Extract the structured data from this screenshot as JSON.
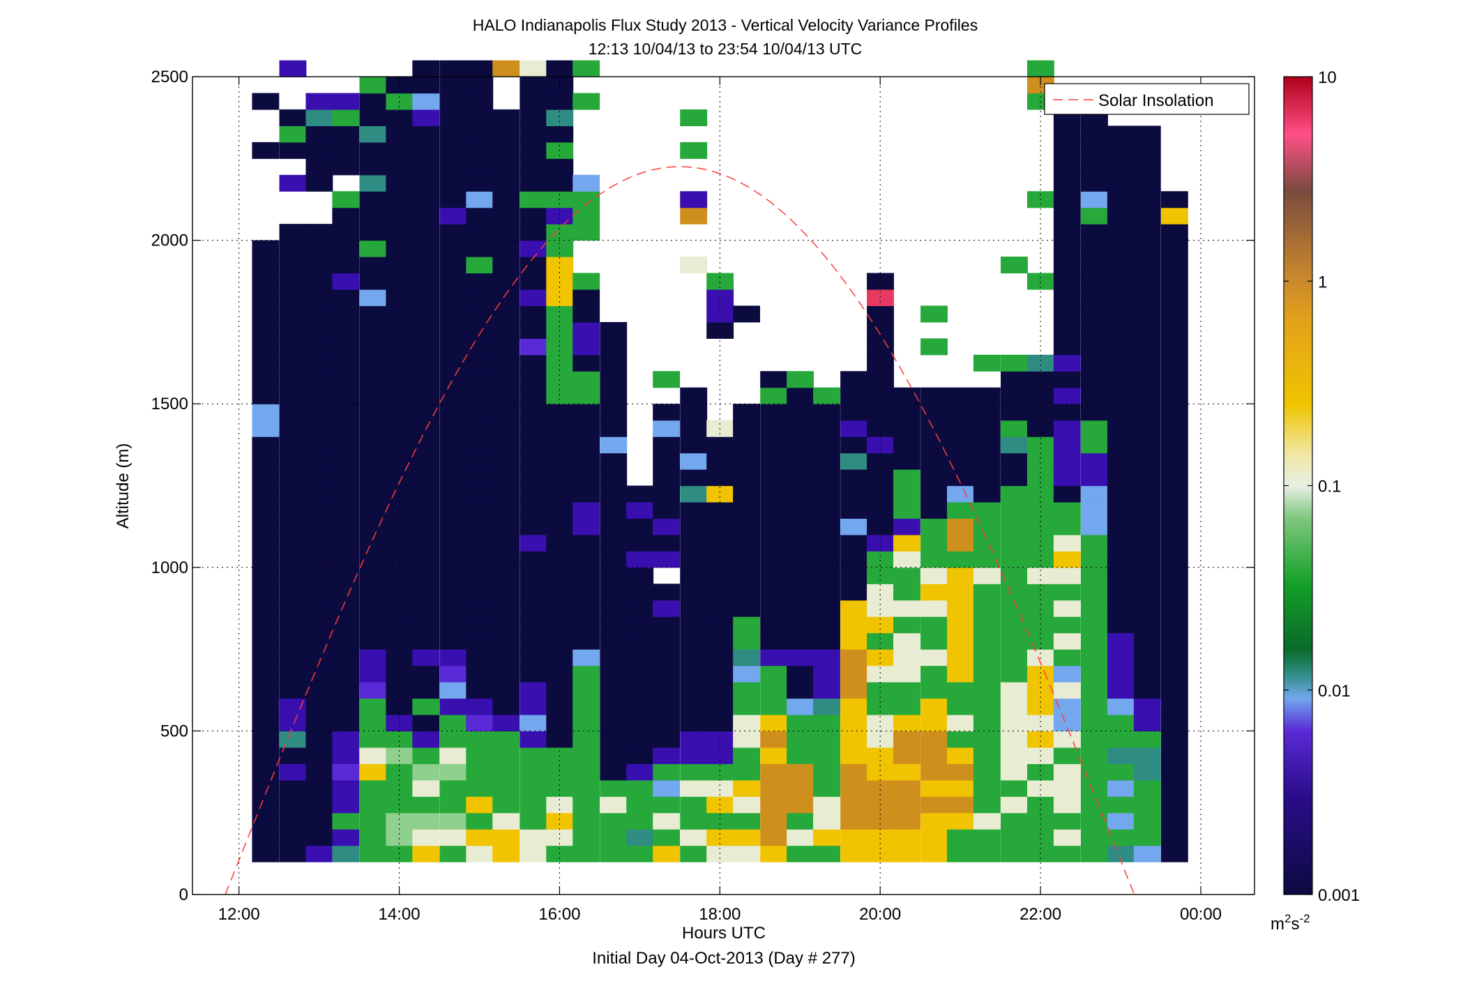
{
  "chart_data": {
    "type": "heatmap",
    "title_line1": "HALO Indianapolis Flux Study 2013 - Vertical Velocity Variance Profiles",
    "title_line2": "12:13 10/04/13 to 23:54 10/04/13  UTC",
    "xlabel": "Hours UTC",
    "xlabel2": "Initial Day 04-Oct-2013 (Day # 277)",
    "ylabel": "Altitude (m)",
    "xlim": [
      11.42,
      24.67
    ],
    "ylim": [
      0,
      2500
    ],
    "x_ticks": [
      12,
      14,
      16,
      18,
      20,
      22,
      24
    ],
    "x_tick_labels": [
      "12:00",
      "14:00",
      "16:00",
      "18:00",
      "20:00",
      "22:00",
      "00:00"
    ],
    "y_ticks": [
      0,
      500,
      1000,
      1500,
      2000,
      2500
    ],
    "y_tick_labels": [
      "0",
      "500",
      "1000",
      "1500",
      "2000",
      "2500"
    ],
    "grid": true,
    "legend": {
      "placement": "top-right",
      "entries": [
        "Solar Insolation"
      ]
    },
    "colorbar": {
      "scale": "log",
      "range": [
        0.001,
        10
      ],
      "tick_values": [
        0.001,
        0.01,
        0.1,
        1,
        10
      ],
      "tick_labels": [
        "0.001",
        "0.01",
        "0.1",
        "1",
        "10"
      ],
      "unit_base": "m",
      "unit_sup1": "2",
      "unit_mid": "s",
      "unit_sup2": "-2"
    },
    "bin_hours": 0.333,
    "bin_altitude_m": 50,
    "columns": [
      {
        "time": 12.33,
        "bottom": 100,
        "profile": "L,L,L,L,L,L,L,L,L,L,L,L,L,L,L,L,L,L,L,L,L,L,L,L,L,L,B,B,L,L,L,L,L,L,L,L,L,L,_,_,_,_,_,L,_,_,L,_,_"
      },
      {
        "time": 12.67,
        "bottom": 100,
        "profile": "L,L,L,L,L,V,L,T,V,V,L,L,L,L,L,L,L,L,L,L,L,L,L,L,L,L,L,L,L,L,L,L,L,L,L,L,L,L,L,_,_,V,_,L,G,L,_,_,V"
      },
      {
        "time": 13.0,
        "bottom": 100,
        "profile": "V,L,L,L,L,L,L,L,L,L,L,L,L,L,L,L,L,L,L,L,L,L,L,L,L,L,L,L,L,L,L,L,L,L,L,L,L,L,L,_,_,L,L,L,L,T,V,_,_"
      },
      {
        "time": 13.33,
        "bottom": 100,
        "profile": "T,V,G,V,V,P,V,V,L,L,L,L,L,L,L,L,L,L,L,L,L,L,L,L,L,L,L,L,L,L,L,L,L,L,L,V,L,L,L,L,G,_,L,L,L,G,V,_,_"
      },
      {
        "time": 13.67,
        "bottom": 100,
        "profile": "G,G,G,G,G,Y,W,G,G,G,P,V,V,L,L,L,L,L,L,L,L,L,L,L,L,L,L,L,L,L,L,L,L,L,B,L,L,G,L,L,L,T,L,L,T,L,L,G,_"
      },
      {
        "time": 14.0,
        "bottom": 100,
        "profile": "G,M,M,G,G,G,M,G,V,L,L,L,L,L,L,L,L,L,L,L,L,L,L,L,L,L,L,L,L,L,L,L,L,L,L,L,L,L,L,L,L,L,L,L,L,L,G,L,_"
      },
      {
        "time": 14.33,
        "bottom": 100,
        "profile": "Y,W,M,G,W,M,G,V,L,G,L,L,V,L,L,L,L,L,L,L,L,L,L,L,L,L,L,L,L,L,L,L,L,L,L,L,L,L,L,L,L,L,L,L,L,V,B,L,L"
      },
      {
        "time": 14.67,
        "bottom": 100,
        "profile": "G,W,M,G,G,M,W,G,G,V,B,P,V,L,L,L,L,L,L,L,L,L,L,L,L,L,L,L,L,L,L,L,L,L,L,L,L,L,L,V,L,L,L,L,L,L,L,L,L"
      },
      {
        "time": 15.0,
        "bottom": 100,
        "profile": "W,Y,G,Y,G,G,G,G,P,V,L,L,L,L,L,L,L,L,L,L,L,L,L,L,L,L,L,L,L,L,L,L,L,L,L,L,G,L,L,L,B,L,L,L,L,L,L,L,L"
      },
      {
        "time": 15.33,
        "bottom": 100,
        "profile": "Y,Y,W,G,G,G,G,G,V,L,L,L,L,L,L,L,L,L,L,L,L,L,L,L,L,L,L,L,L,L,L,L,L,L,L,L,L,L,L,L,L,L,L,L,L,L,_,_,O"
      },
      {
        "time": 15.67,
        "bottom": 100,
        "profile": "W,W,G,G,G,G,G,V,B,V,V,L,L,L,L,L,L,L,L,V,L,L,L,L,L,L,L,L,L,L,L,P,L,L,V,L,L,V,L,L,G,L,L,L,L,L,L,L,W"
      },
      {
        "time": 16.0,
        "bottom": 100,
        "profile": "G,W,Y,W,G,G,G,L,L,L,L,L,L,L,L,L,L,L,L,L,L,L,L,L,L,L,L,L,G,G,G,G,G,G,Y,Y,Y,G,G,V,G,L,L,G,L,T,L,L,L"
      },
      {
        "time": 16.33,
        "bottom": 100,
        "profile": "G,G,G,G,G,G,G,G,G,G,G,G,B,L,L,L,L,L,L,L,V,V,L,L,L,L,L,L,G,G,L,V,V,L,L,G,_,_,G,G,G,B,_,_,_,_,G,_,G"
      },
      {
        "time": 16.67,
        "bottom": 100,
        "profile": "G,G,G,W,G,L,L,L,L,L,L,L,L,L,L,L,L,L,L,L,L,L,L,L,L,B,L,L,L,L,L,L,L,_,_,_,_,_,_,_,_,_,_,_,_,_,_,_,_"
      },
      {
        "time": 17.0,
        "bottom": 100,
        "profile": "G,T,G,G,G,V,L,L,L,L,L,L,L,L,L,L,L,L,V,L,L,V,L,_,_,_,_,_,_,_,_,_,_,_,_,_,_,_,_,_,_,_,_,_,_,_,_,_,_"
      },
      {
        "time": 17.33,
        "bottom": 100,
        "profile": "Y,G,W,G,B,G,V,L,L,L,L,L,L,L,L,V,L,_,V,L,V,L,L,L,L,L,B,L,_,G,_,_,_,_,_,_,_,_,_,_,_,_,_,_,_,_,_,_,_"
      },
      {
        "time": 17.67,
        "bottom": 100,
        "profile": "G,W,G,G,W,G,V,V,L,L,L,L,L,L,L,L,L,L,L,L,L,L,T,L,B,L,L,L,L,_,_,_,_,_,_,_,W,_,_,O,V,_,_,G,_,G,_,_,_"
      },
      {
        "time": 18.0,
        "bottom": 100,
        "profile": "W,Y,G,Y,W,G,V,V,L,L,L,L,L,L,L,L,L,L,L,L,L,L,Y,L,L,L,W,_,_,_,_,_,L,V,V,G,_,_,_,_,_,_,_,_,_,_,_,_,_"
      },
      {
        "time": 18.33,
        "bottom": 100,
        "profile": "W,Y,G,W,Y,G,G,W,W,G,G,B,T,G,G,L,L,L,L,L,L,L,L,L,L,L,L,L,_,_,_,_,_,L,_,_,_,_,_,_,_,_,_,_,_,_,_,_,_"
      },
      {
        "time": 18.67,
        "bottom": 100,
        "profile": "Y,O,O,O,O,O,Y,O,Y,G,G,G,V,L,L,L,L,L,L,L,L,L,L,L,L,L,L,L,G,L,_,_,_,_,_,_,_,_,_,_,_,_,_,_,_,_,_,_,_"
      },
      {
        "time": 19.0,
        "bottom": 100,
        "profile": "G,W,G,O,O,O,G,G,G,B,L,L,V,L,L,L,L,L,L,L,L,L,L,L,L,L,L,L,L,G,_,_,_,_,_,_,_,_,_,_,_,_,_,_,_,_,_,_,_"
      },
      {
        "time": 19.33,
        "bottom": 100,
        "profile": "G,Y,W,W,G,G,G,G,G,T,V,V,V,L,L,L,L,L,L,L,L,L,L,L,L,L,L,L,G,_,_,_,_,_,_,_,_,_,_,_,_,_,_,_,_,_,_,_,_"
      },
      {
        "time": 19.67,
        "bottom": 100,
        "profile": "Y,Y,O,O,O,O,Y,Y,Y,Y,O,O,O,Y,Y,Y,L,L,L,L,B,L,L,L,T,L,V,L,L,L,_,_,_,_,_,_,_,_,_,_,_,_,_,_,_,_,_,_,_"
      },
      {
        "time": 20.0,
        "bottom": 100,
        "profile": "Y,Y,O,O,O,Y,Y,W,W,G,G,W,Y,G,Y,W,W,G,G,V,L,L,L,L,L,V,L,L,L,L,L,L,L,L,R,L,_,_,_,_,_,_,_,_,_,_,_,_,_"
      },
      {
        "time": 20.33,
        "bottom": 100,
        "profile": "Y,Y,O,O,O,Y,O,O,Y,G,G,W,W,W,G,W,G,G,W,Y,V,G,G,G,L,L,L,L,L,_,_,_,_,_,_,_,_,_,_,_,_,_,_,_,_,_,_,_,_"
      },
      {
        "time": 20.67,
        "bottom": 100,
        "profile": "Y,Y,Y,O,Y,O,O,O,Y,Y,G,G,W,G,G,W,Y,W,G,G,G,L,L,L,L,L,L,L,L,_,_,G,_,G,_,_,_,_,_,_,_,_,_,_,_,_,_,_,_"
      },
      {
        "time": 21.0,
        "bottom": 100,
        "profile": "G,G,Y,O,Y,O,Y,G,W,G,G,Y,Y,Y,Y,Y,Y,Y,G,O,O,G,B,L,L,L,L,L,L,_,_,_,_,_,_,_,_,_,_,_,_,_,_,_,_,_,_,_,_"
      },
      {
        "time": 21.33,
        "bottom": 100,
        "profile": "G,G,W,G,G,G,G,G,G,G,G,G,G,G,G,G,G,W,G,G,G,G,L,L,L,L,L,L,L,_,G,_,_,_,_,_,_,_,_,_,_,_,_,_,_,_,_,_,_"
      },
      {
        "time": 21.67,
        "bottom": 100,
        "profile": "G,G,G,W,G,W,W,W,W,W,W,G,G,G,G,G,G,G,G,G,G,G,G,L,L,T,G,L,L,L,G,_,_,_,_,_,G,_,_,_,_,_,_,_,_,_,_,_,_"
      },
      {
        "time": 22.0,
        "bottom": 100,
        "profile": "G,G,G,G,W,G,W,Y,W,Y,Y,Y,W,G,G,G,G,W,G,G,G,G,G,G,G,G,L,L,L,L,T,_,_,_,_,G,_,_,_,_,G,_,_,_,_,_,G,O,G"
      },
      {
        "time": 22.33,
        "bottom": 100,
        "profile": "G,W,G,W,W,W,G,W,B,B,W,B,G,W,G,W,G,W,Y,W,G,G,L,V,V,V,V,L,V,L,V,L,L,L,L,L,L,L,L,L,L,L,L,L,L,L,G,_,_"
      },
      {
        "time": 22.67,
        "bottom": 100,
        "profile": "G,G,G,G,G,G,G,G,G,G,G,G,G,G,G,G,G,G,G,G,B,B,B,V,V,G,G,L,L,L,L,L,L,L,L,L,L,L,L,G,B,L,L,L,L,L,L,_,_"
      },
      {
        "time": 23.0,
        "bottom": 100,
        "profile": "T,G,B,G,B,G,T,G,G,B,V,V,V,V,L,L,L,L,L,L,L,L,L,L,L,L,L,L,L,L,L,L,L,L,L,L,L,L,L,L,L,L,L,L,L,_,_,_,_"
      },
      {
        "time": 23.33,
        "bottom": 100,
        "profile": "B,G,G,G,G,T,T,G,V,V,L,L,L,L,L,L,L,L,L,L,L,L,L,L,L,L,L,L,L,L,L,L,L,L,L,L,L,L,L,L,L,L,L,L,L,_,W,_,_"
      },
      {
        "time": 23.67,
        "bottom": 100,
        "profile": "L,L,L,L,L,L,L,L,L,L,L,L,L,L,L,L,L,L,L,L,L,L,L,L,L,L,L,L,L,L,L,L,L,L,L,L,L,L,L,Y,L,_,_,_,_,_,_,_,_"
      }
    ],
    "solar_insolation": {
      "style": "dashed",
      "color": "#ff3b3b",
      "peak_x": 17.5,
      "peak_y": 2225,
      "zero_crossings": [
        11.83,
        23.17
      ]
    },
    "palette": {
      "L": "#0c0b40",
      "V": "#3a0fb0",
      "P": "#5a2ad6",
      "B": "#73a7ee",
      "T": "#2f8c82",
      "G": "#26a83a",
      "M": "#8fd08e",
      "W": "#e8ecd2",
      "Y": "#f0c400",
      "O": "#cf8f1c",
      "R": "#e83a60"
    }
  }
}
